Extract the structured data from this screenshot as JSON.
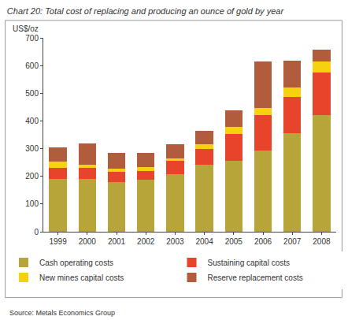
{
  "chart_data": {
    "type": "bar",
    "title": "Chart 20: Total cost of replacing and producing an ounce of gold by year",
    "ylabel": "US$/oz",
    "annotations": [
      "Source: Metals Economics Group"
    ],
    "categories": [
      "1999",
      "2000",
      "2001",
      "2002",
      "2003",
      "2004",
      "2005",
      "2006",
      "2007",
      "2008"
    ],
    "series": [
      {
        "name": "Cash operating costs",
        "color": "#b8a53a",
        "values": [
          190,
          192,
          180,
          187,
          207,
          243,
          255,
          293,
          355,
          420
        ]
      },
      {
        "name": "Sustaining capital costs",
        "color": "#e8432b",
        "values": [
          40,
          38,
          35,
          33,
          48,
          55,
          98,
          127,
          133,
          155
        ]
      },
      {
        "name": "New mines capital costs",
        "color": "#f6d20e",
        "values": [
          22,
          12,
          13,
          12,
          10,
          18,
          25,
          28,
          32,
          40
        ]
      },
      {
        "name": "Reserve replacement costs",
        "color": "#b15c3c",
        "values": [
          52,
          78,
          57,
          52,
          52,
          47,
          60,
          168,
          97,
          43
        ]
      }
    ],
    "ylim": [
      0,
      700
    ],
    "yticks": [
      0,
      100,
      200,
      300,
      400,
      500,
      600,
      700
    ],
    "stacked": true,
    "grid": false,
    "legend": "bottom"
  }
}
